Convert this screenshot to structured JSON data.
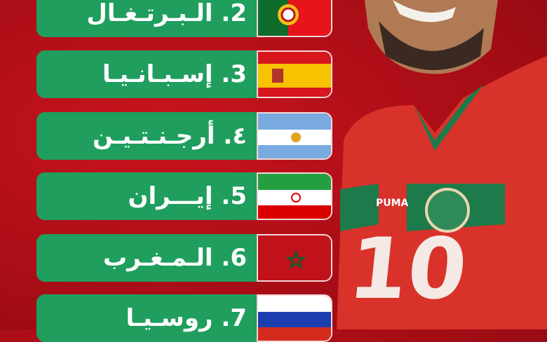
{
  "rankings": [
    {
      "label": "2. الـبـرتـغـال",
      "country": "portugal-flag"
    },
    {
      "label": "3. إسـبـانـيـا",
      "country": "spain-flag"
    },
    {
      "label": "٤. أرجـنـتـيـن",
      "country": "argentina-flag"
    },
    {
      "label": "5. إيـــران",
      "country": "iran-flag"
    },
    {
      "label": "6. الـمـغـرب",
      "country": "morocco-flag"
    },
    {
      "label": "7. روسـيـا",
      "country": "russia-flag"
    }
  ],
  "player": {
    "shirt_number": "10",
    "brand": "PUMA"
  },
  "colors": {
    "background": "#b5121b",
    "pill": "#1f9e5e",
    "shirt": "#d8322a",
    "shirt_green": "#1d7a4a"
  }
}
